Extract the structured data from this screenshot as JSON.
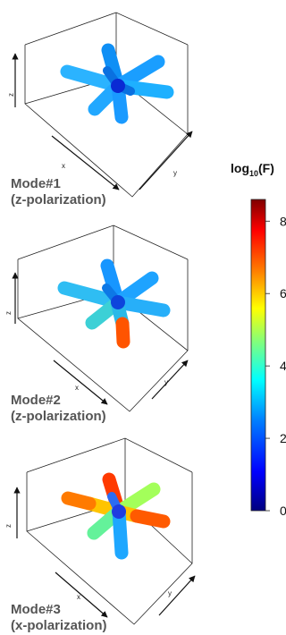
{
  "colorbar": {
    "title_main": "log",
    "title_sub": "10",
    "title_tail": "(F)",
    "min": 0,
    "max": 8.6,
    "ticks": [
      "0",
      "2",
      "4",
      "6",
      "8"
    ],
    "colors": [
      "#00007f",
      "#0000ff",
      "#007fff",
      "#00ffff",
      "#7fff7f",
      "#ffff00",
      "#ff7f00",
      "#ff0000",
      "#7f0000"
    ]
  },
  "axes": {
    "x": "x",
    "y": "y",
    "z": "z"
  },
  "modes": [
    {
      "name": "Mode#1",
      "polarization": "(z-polarization)"
    },
    {
      "name": "Mode#2",
      "polarization": "(z-polarization)"
    },
    {
      "name": "Mode#3",
      "polarization": "(x-polarization)"
    }
  ]
}
